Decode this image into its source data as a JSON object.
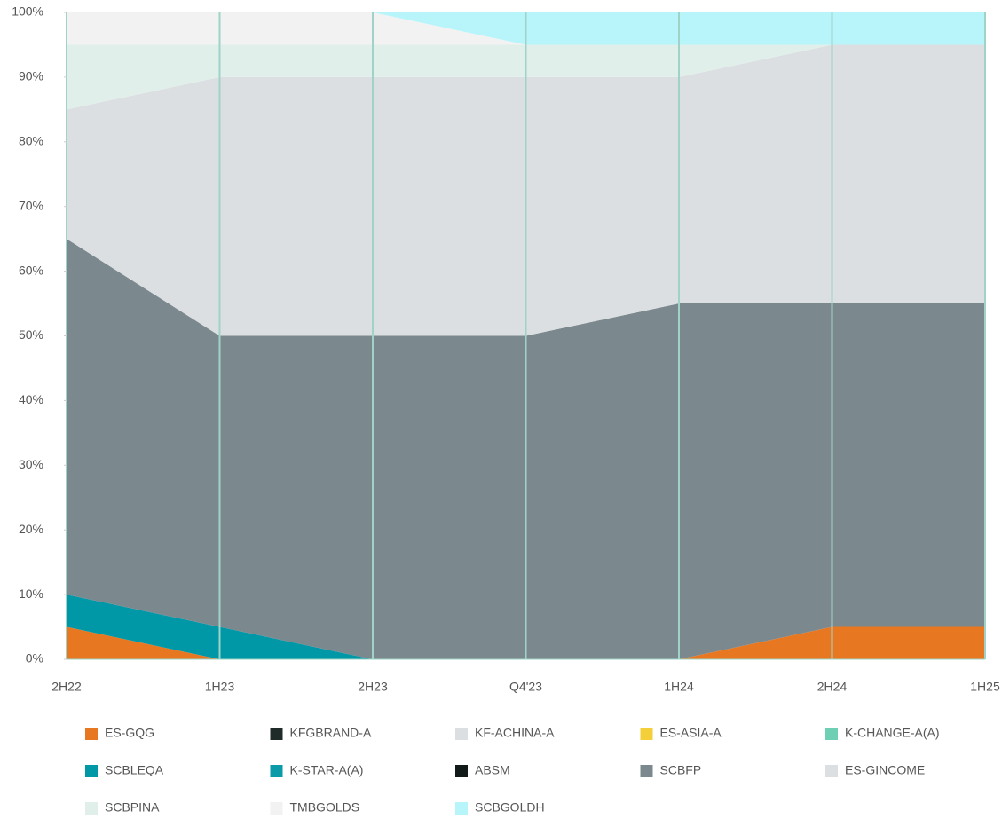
{
  "chart_data": {
    "type": "stacked-area",
    "categories": [
      "2H22",
      "1H23",
      "2H23",
      "Q4'23",
      "1H24",
      "2H24",
      "1H25"
    ],
    "series": [
      {
        "name": "ES-GQG",
        "color": "#e87722",
        "values": [
          5,
          0,
          0,
          0,
          0,
          5,
          5
        ]
      },
      {
        "name": "KFGBRAND-A",
        "color": "#1e2b28",
        "values": [
          0,
          0,
          0,
          0,
          0,
          0,
          0
        ]
      },
      {
        "name": "KF-ACHINA-A",
        "color": "#dcdfe2",
        "values": [
          0,
          0,
          0,
          0,
          0,
          0,
          0
        ]
      },
      {
        "name": "ES-ASIA-A",
        "color": "#f5cf3a",
        "values": [
          0,
          0,
          0,
          0,
          0,
          0,
          0
        ]
      },
      {
        "name": "K-CHANGE-A(A)",
        "color": "#6fcfb5",
        "values": [
          0,
          0,
          0,
          0,
          0,
          0,
          0
        ]
      },
      {
        "name": "SCBLEQA",
        "color": "#0097a7",
        "values": [
          5,
          5,
          0,
          0,
          0,
          0,
          0
        ]
      },
      {
        "name": "K-STAR-A(A)",
        "color": "#0a9aa8",
        "values": [
          0,
          0,
          0,
          0,
          0,
          0,
          0
        ]
      },
      {
        "name": "ABSM",
        "color": "#111a18",
        "values": [
          0,
          0,
          0,
          0,
          0,
          0,
          0
        ]
      },
      {
        "name": "SCBFP",
        "color": "#7b888e",
        "values": [
          55,
          45,
          50,
          50,
          55,
          50,
          50
        ]
      },
      {
        "name": "ES-GINCOME",
        "color": "#dcdfe2",
        "values": [
          20,
          40,
          40,
          40,
          35,
          40,
          40
        ]
      },
      {
        "name": "SCBPINA",
        "color": "#e1efeb",
        "values": [
          10,
          5,
          5,
          5,
          5,
          0,
          0
        ]
      },
      {
        "name": "TMBGOLDS",
        "color": "#f2f2f2",
        "values": [
          5,
          5,
          5,
          0,
          0,
          0,
          0
        ]
      },
      {
        "name": "SCBGOLDH",
        "color": "#b8f5fb",
        "values": [
          0,
          0,
          0,
          5,
          5,
          5,
          5
        ]
      }
    ],
    "ylim": [
      0,
      100
    ],
    "yticks": [
      {
        "value": 0,
        "label": "0%"
      },
      {
        "value": 10,
        "label": "10%"
      },
      {
        "value": 20,
        "label": "20%"
      },
      {
        "value": 30,
        "label": "30%"
      },
      {
        "value": 40,
        "label": "40%"
      },
      {
        "value": 50,
        "label": "50%"
      },
      {
        "value": 60,
        "label": "60%"
      },
      {
        "value": 70,
        "label": "70%"
      },
      {
        "value": 80,
        "label": "80%"
      },
      {
        "value": 90,
        "label": "90%"
      },
      {
        "value": 100,
        "label": "100%"
      }
    ],
    "grid": false
  }
}
